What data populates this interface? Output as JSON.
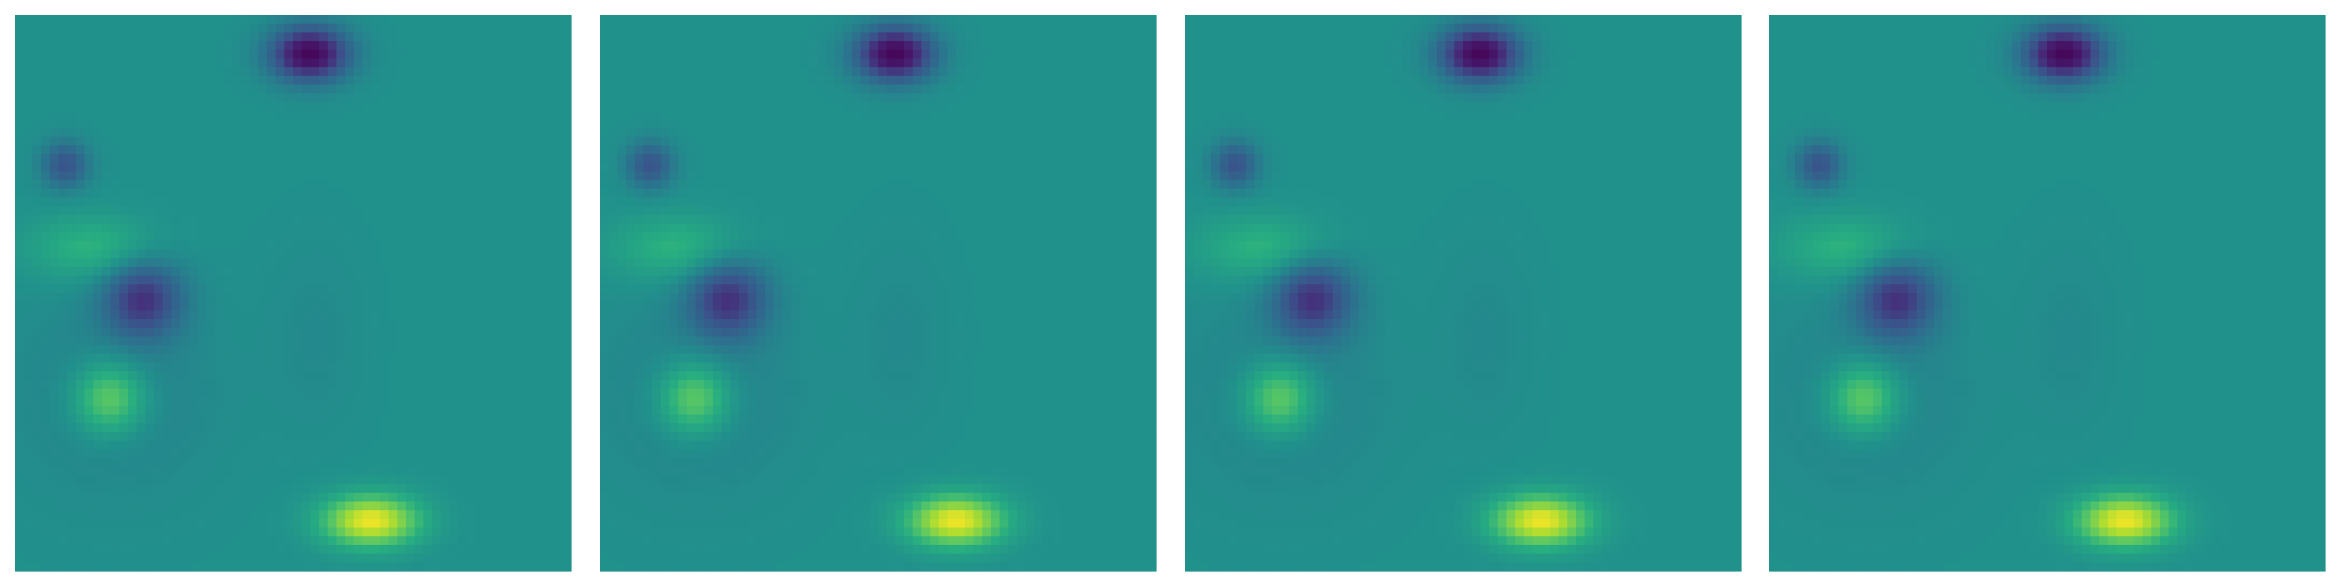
{
  "figure": {
    "colormap": "viridis",
    "panel_count": 4
  },
  "chart_data": [
    {
      "type": "heatmap",
      "colormap": "viridis",
      "title": "",
      "xlabel": "",
      "ylabel": "",
      "axes": "off",
      "grid": false,
      "legend": "none",
      "field": {
        "background": 0.5,
        "features": [
          {
            "name": "top-low",
            "x": 0.53,
            "y": 0.07,
            "sx": 0.05,
            "sy": 0.035,
            "amp": -0.48
          },
          {
            "name": "left-small-low",
            "x": 0.09,
            "y": 0.27,
            "sx": 0.03,
            "sy": 0.03,
            "amp": -0.24
          },
          {
            "name": "left-band-high",
            "x": 0.14,
            "y": 0.42,
            "sx": 0.08,
            "sy": 0.04,
            "amp": 0.16
          },
          {
            "name": "center-left-low",
            "x": 0.23,
            "y": 0.51,
            "sx": 0.05,
            "sy": 0.05,
            "amp": -0.32
          },
          {
            "name": "left-ring-low",
            "x": 0.18,
            "y": 0.68,
            "sx": 0.13,
            "sy": 0.13,
            "amp": -0.06
          },
          {
            "name": "lower-left-high",
            "x": 0.17,
            "y": 0.69,
            "sx": 0.045,
            "sy": 0.045,
            "amp": 0.3
          },
          {
            "name": "bottom-high",
            "x": 0.64,
            "y": 0.91,
            "sx": 0.06,
            "sy": 0.032,
            "amp": 0.48
          },
          {
            "name": "mid-weak-low",
            "x": 0.54,
            "y": 0.58,
            "sx": 0.06,
            "sy": 0.12,
            "amp": -0.03
          }
        ]
      }
    },
    {
      "type": "heatmap",
      "colormap": "viridis",
      "title": "",
      "xlabel": "",
      "ylabel": "",
      "axes": "off",
      "grid": false,
      "legend": "none",
      "field": {
        "background": 0.5,
        "features": [
          {
            "name": "top-low",
            "x": 0.53,
            "y": 0.07,
            "sx": 0.05,
            "sy": 0.035,
            "amp": -0.48
          },
          {
            "name": "left-small-low",
            "x": 0.09,
            "y": 0.27,
            "sx": 0.03,
            "sy": 0.03,
            "amp": -0.24
          },
          {
            "name": "left-band-high",
            "x": 0.14,
            "y": 0.42,
            "sx": 0.08,
            "sy": 0.04,
            "amp": 0.16
          },
          {
            "name": "center-left-low",
            "x": 0.23,
            "y": 0.51,
            "sx": 0.05,
            "sy": 0.05,
            "amp": -0.32
          },
          {
            "name": "left-ring-low",
            "x": 0.18,
            "y": 0.68,
            "sx": 0.13,
            "sy": 0.13,
            "amp": -0.06
          },
          {
            "name": "lower-left-high",
            "x": 0.17,
            "y": 0.69,
            "sx": 0.045,
            "sy": 0.045,
            "amp": 0.3
          },
          {
            "name": "bottom-high",
            "x": 0.64,
            "y": 0.91,
            "sx": 0.06,
            "sy": 0.032,
            "amp": 0.48
          },
          {
            "name": "mid-weak-low",
            "x": 0.54,
            "y": 0.58,
            "sx": 0.06,
            "sy": 0.12,
            "amp": -0.03
          }
        ]
      }
    },
    {
      "type": "heatmap",
      "colormap": "viridis",
      "title": "",
      "xlabel": "",
      "ylabel": "",
      "axes": "off",
      "grid": false,
      "legend": "none",
      "field": {
        "background": 0.5,
        "features": [
          {
            "name": "top-low",
            "x": 0.53,
            "y": 0.07,
            "sx": 0.05,
            "sy": 0.035,
            "amp": -0.48
          },
          {
            "name": "left-small-low",
            "x": 0.09,
            "y": 0.27,
            "sx": 0.03,
            "sy": 0.03,
            "amp": -0.24
          },
          {
            "name": "left-band-high",
            "x": 0.14,
            "y": 0.42,
            "sx": 0.08,
            "sy": 0.04,
            "amp": 0.16
          },
          {
            "name": "center-left-low",
            "x": 0.23,
            "y": 0.51,
            "sx": 0.05,
            "sy": 0.05,
            "amp": -0.32
          },
          {
            "name": "left-ring-low",
            "x": 0.18,
            "y": 0.68,
            "sx": 0.13,
            "sy": 0.13,
            "amp": -0.06
          },
          {
            "name": "lower-left-high",
            "x": 0.17,
            "y": 0.69,
            "sx": 0.045,
            "sy": 0.045,
            "amp": 0.3
          },
          {
            "name": "bottom-high",
            "x": 0.64,
            "y": 0.91,
            "sx": 0.06,
            "sy": 0.032,
            "amp": 0.48
          },
          {
            "name": "mid-weak-low",
            "x": 0.54,
            "y": 0.58,
            "sx": 0.06,
            "sy": 0.12,
            "amp": -0.03
          }
        ]
      }
    },
    {
      "type": "heatmap",
      "colormap": "viridis",
      "title": "",
      "xlabel": "",
      "ylabel": "",
      "axes": "off",
      "grid": false,
      "legend": "none",
      "field": {
        "background": 0.5,
        "features": [
          {
            "name": "top-low",
            "x": 0.53,
            "y": 0.07,
            "sx": 0.05,
            "sy": 0.035,
            "amp": -0.48
          },
          {
            "name": "left-small-low",
            "x": 0.09,
            "y": 0.27,
            "sx": 0.03,
            "sy": 0.03,
            "amp": -0.24
          },
          {
            "name": "left-band-high",
            "x": 0.14,
            "y": 0.42,
            "sx": 0.08,
            "sy": 0.04,
            "amp": 0.16
          },
          {
            "name": "center-left-low",
            "x": 0.23,
            "y": 0.51,
            "sx": 0.05,
            "sy": 0.05,
            "amp": -0.32
          },
          {
            "name": "left-ring-low",
            "x": 0.18,
            "y": 0.68,
            "sx": 0.13,
            "sy": 0.13,
            "amp": -0.06
          },
          {
            "name": "lower-left-high",
            "x": 0.17,
            "y": 0.69,
            "sx": 0.045,
            "sy": 0.045,
            "amp": 0.3
          },
          {
            "name": "bottom-high",
            "x": 0.64,
            "y": 0.91,
            "sx": 0.06,
            "sy": 0.032,
            "amp": 0.48
          },
          {
            "name": "mid-weak-low",
            "x": 0.54,
            "y": 0.58,
            "sx": 0.06,
            "sy": 0.12,
            "amp": -0.03
          }
        ]
      }
    }
  ]
}
